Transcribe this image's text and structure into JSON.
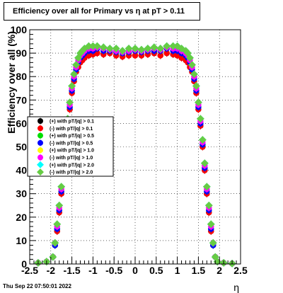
{
  "title": "Efficiency over all for Primary vs    η at pT > 0.11",
  "timestamp": "Thu Sep 22 07:50:01 2022",
  "chart_data": {
    "type": "scatter",
    "xlabel": "η",
    "ylabel": "Efficiency over all (%)",
    "xlim": [
      -2.5,
      2.5
    ],
    "ylim": [
      0,
      100
    ],
    "x_ticks": [
      "-2.5",
      "-2",
      "-1.5",
      "-1",
      "-0.5",
      "0",
      "0.5",
      "1",
      "1.5",
      "2",
      "2.5"
    ],
    "y_ticks": [
      "0",
      "10",
      "20",
      "30",
      "40",
      "50",
      "60",
      "70",
      "80",
      "90",
      "100"
    ],
    "grid": true,
    "legend_position": "middle-left",
    "x": [
      -2.3,
      -2.1,
      -1.95,
      -1.9,
      -1.85,
      -1.8,
      -1.75,
      -1.7,
      -1.65,
      -1.6,
      -1.55,
      -1.5,
      -1.45,
      -1.4,
      -1.35,
      -1.3,
      -1.25,
      -1.2,
      -1.1,
      -1.0,
      -0.9,
      -0.75,
      -0.6,
      -0.45,
      -0.3,
      -0.15,
      0.0,
      0.15,
      0.3,
      0.45,
      0.6,
      0.75,
      0.9,
      1.0,
      1.1,
      1.2,
      1.25,
      1.3,
      1.35,
      1.4,
      1.45,
      1.5,
      1.55,
      1.6,
      1.65,
      1.7,
      1.75,
      1.8,
      1.85,
      1.9,
      1.95,
      2.1,
      2.3
    ],
    "series": [
      {
        "name": "(+) with pT/|q| > 0.1",
        "color": "#000000",
        "values": [
          0.5,
          1.0,
          3,
          8,
          14,
          22,
          30,
          40,
          50,
          59,
          66,
          73,
          78,
          82,
          84,
          86,
          87,
          88,
          89,
          89.5,
          90,
          89.5,
          90,
          89,
          88.5,
          89,
          89,
          89,
          89.5,
          90,
          89,
          90,
          89.5,
          89,
          88,
          87,
          86,
          84,
          82,
          78,
          73,
          66,
          59,
          50,
          40,
          30,
          22,
          14,
          8,
          3,
          1.0,
          0.5,
          0.2
        ]
      },
      {
        "name": "(-) with pT/|q| > 0.1",
        "color": "#ff0000",
        "values": [
          0.5,
          1.0,
          3,
          8,
          14,
          22,
          30,
          40,
          50,
          59,
          66,
          73,
          78,
          82,
          84,
          86,
          87,
          88,
          89,
          89.5,
          90,
          89.5,
          90,
          89,
          88.5,
          89,
          89,
          89,
          89.5,
          90,
          89,
          90,
          89.5,
          89,
          88,
          87,
          86,
          84,
          82,
          78,
          73,
          66,
          59,
          50,
          40,
          30,
          22,
          14,
          8,
          3,
          1.0,
          0.5,
          0.2
        ]
      },
      {
        "name": "(+) with pT/|q| > 0.5",
        "color": "#00dd00",
        "values": [
          0.5,
          1.0,
          3,
          8,
          15,
          23,
          31,
          41,
          51,
          60,
          67,
          74,
          79,
          83,
          86,
          88,
          89,
          90,
          91,
          91,
          92,
          91,
          91,
          90.5,
          90,
          90.5,
          91,
          90.5,
          91,
          91,
          91,
          92,
          91,
          91,
          90,
          89,
          88,
          86,
          83,
          79,
          74,
          67,
          60,
          51,
          41,
          31,
          23,
          15,
          8,
          3,
          1.0,
          0.5,
          0.2
        ]
      },
      {
        "name": "(-) with pT/|q| > 0.5",
        "color": "#0000ff",
        "values": [
          0.5,
          1.0,
          3,
          8,
          15,
          23,
          31,
          41,
          51,
          60,
          67,
          74,
          79,
          83,
          86,
          88,
          89,
          90,
          91,
          91,
          92,
          91,
          91,
          90.5,
          90,
          90.5,
          91,
          90.5,
          91,
          91,
          91,
          92,
          91,
          91,
          90,
          89,
          88,
          86,
          83,
          79,
          74,
          67,
          60,
          51,
          41,
          31,
          23,
          15,
          8,
          3,
          1.0,
          0.5,
          0.2
        ]
      },
      {
        "name": "(+) with pT/|q| > 1.0",
        "color": "#ffff00",
        "values": [
          0.5,
          1.0,
          3,
          9,
          16,
          24,
          32,
          42,
          52,
          61,
          68,
          75,
          80,
          84,
          87,
          89,
          90,
          91,
          92,
          92,
          92.5,
          92,
          91.5,
          91,
          90.5,
          91,
          91.5,
          91,
          91.5,
          92,
          91.5,
          92.5,
          92,
          92,
          91,
          90,
          89,
          87,
          84,
          80,
          75,
          68,
          61,
          52,
          42,
          32,
          24,
          16,
          9,
          3,
          1.0,
          0.5,
          0.2
        ]
      },
      {
        "name": "(-) with pT/|q| > 1.0",
        "color": "#ff00ff",
        "values": [
          0.5,
          1.0,
          3,
          9,
          16,
          24,
          32,
          42,
          52,
          61,
          68,
          75,
          80,
          84,
          87,
          89,
          90,
          91,
          92,
          92,
          92.5,
          92,
          91.5,
          91,
          90.5,
          91,
          91.5,
          91,
          91.5,
          92,
          91.5,
          92.5,
          92,
          92,
          91,
          90,
          89,
          87,
          84,
          80,
          75,
          68,
          61,
          52,
          42,
          32,
          24,
          16,
          9,
          3,
          1.0,
          0.5,
          0.2
        ]
      },
      {
        "name": "(+) with pT/|q| > 2.0",
        "color": "#00ffff",
        "values": [
          0.5,
          1.0,
          3,
          9,
          17,
          25,
          33,
          43,
          53,
          62,
          69,
          76,
          81,
          85,
          88,
          90,
          91,
          92,
          93,
          93,
          93,
          92.5,
          92,
          92,
          91,
          92,
          92,
          91.5,
          92,
          92.5,
          92,
          93,
          93,
          93,
          92,
          91,
          90,
          88,
          85,
          81,
          76,
          69,
          62,
          53,
          43,
          33,
          25,
          17,
          9,
          3,
          1.0,
          0.5,
          0.2
        ]
      },
      {
        "name": "(-) with pT/|q| > 2.0",
        "color": "#66cc44",
        "values": [
          0.5,
          1.0,
          3,
          9,
          17,
          25,
          33,
          43,
          53,
          62,
          69,
          76,
          81,
          85,
          88,
          90,
          91,
          92,
          93,
          93,
          93,
          92.5,
          92,
          92,
          91,
          92,
          92,
          91.5,
          92,
          92.5,
          92,
          93,
          93,
          93,
          92,
          91,
          90,
          88,
          85,
          81,
          76,
          69,
          62,
          53,
          43,
          33,
          25,
          17,
          9,
          3,
          1.0,
          0.5,
          0.2
        ]
      }
    ]
  }
}
